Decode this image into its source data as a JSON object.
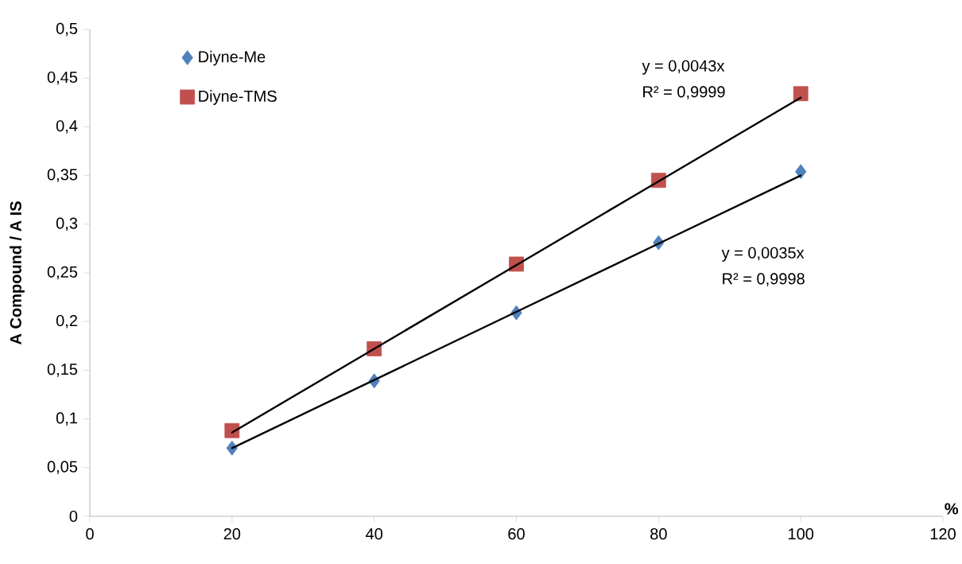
{
  "chart_data": {
    "type": "scatter",
    "xlabel": "%",
    "ylabel": "A Compound / A IS",
    "xlim": [
      0,
      120
    ],
    "xticks": [
      0,
      20,
      40,
      60,
      80,
      100,
      120
    ],
    "ylim": [
      0,
      0.5
    ],
    "yticks": [
      0,
      {
        "value": 0.05,
        "label": "0,05"
      },
      {
        "value": 0.1,
        "label": "0,1"
      },
      {
        "value": 0.15,
        "label": "0,15"
      },
      {
        "value": 0.2,
        "label": "0,2"
      },
      {
        "value": 0.25,
        "label": "0,25"
      },
      {
        "value": 0.3,
        "label": "0,3"
      },
      {
        "value": 0.35,
        "label": "0,35"
      },
      {
        "value": 0.4,
        "label": "0,4"
      },
      {
        "value": 0.45,
        "label": "0,45"
      },
      {
        "value": 0.5,
        "label": "0,5"
      }
    ],
    "x": [
      20,
      40,
      60,
      80,
      100
    ],
    "legend": "top left",
    "series": [
      {
        "name": "Diyne-Me",
        "color": "#4f81bd",
        "marker": "diamond",
        "values": [
          0.07,
          0.139,
          0.209,
          0.281,
          0.354
        ]
      },
      {
        "name": "Diyne-TMS",
        "color": "#c0504d",
        "marker": "square",
        "values": [
          0.088,
          0.172,
          0.259,
          0.345,
          0.434
        ]
      },
      {
        "type": "line",
        "color": "#000000",
        "marker": "none",
        "line_style": "solid",
        "values": [
          0.07,
          0.14,
          0.21,
          0.28,
          0.35
        ]
      },
      {
        "type": "line",
        "color": "#000000",
        "marker": "none",
        "line_style": "solid",
        "values": [
          0.086,
          0.172,
          0.258,
          0.344,
          0.43
        ]
      }
    ],
    "annotations": [
      "y = 0,0043x",
      "R² = 0,9999",
      "y = 0,0035x",
      "R² = 0,9998"
    ]
  }
}
